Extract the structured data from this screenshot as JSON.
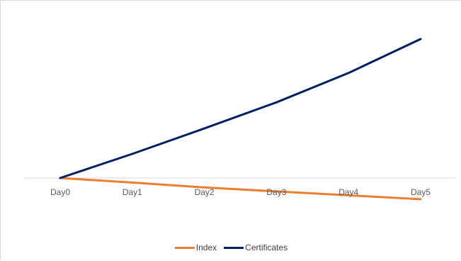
{
  "chart_data": {
    "type": "line",
    "categories": [
      "Day0",
      "Day1",
      "Day2",
      "Day3",
      "Day4",
      "Day5"
    ],
    "series": [
      {
        "name": "Index",
        "color": "#ed7d31",
        "values": [
          0,
          -0.7,
          -1.45,
          -2.05,
          -2.65,
          -3.25
        ]
      },
      {
        "name": "Certificates",
        "color": "#002060",
        "values": [
          0,
          3.7,
          7.6,
          11.6,
          16.1,
          21.3
        ]
      }
    ],
    "ylim": [
      -4,
      24
    ],
    "grid": false,
    "legend": "bottom"
  }
}
